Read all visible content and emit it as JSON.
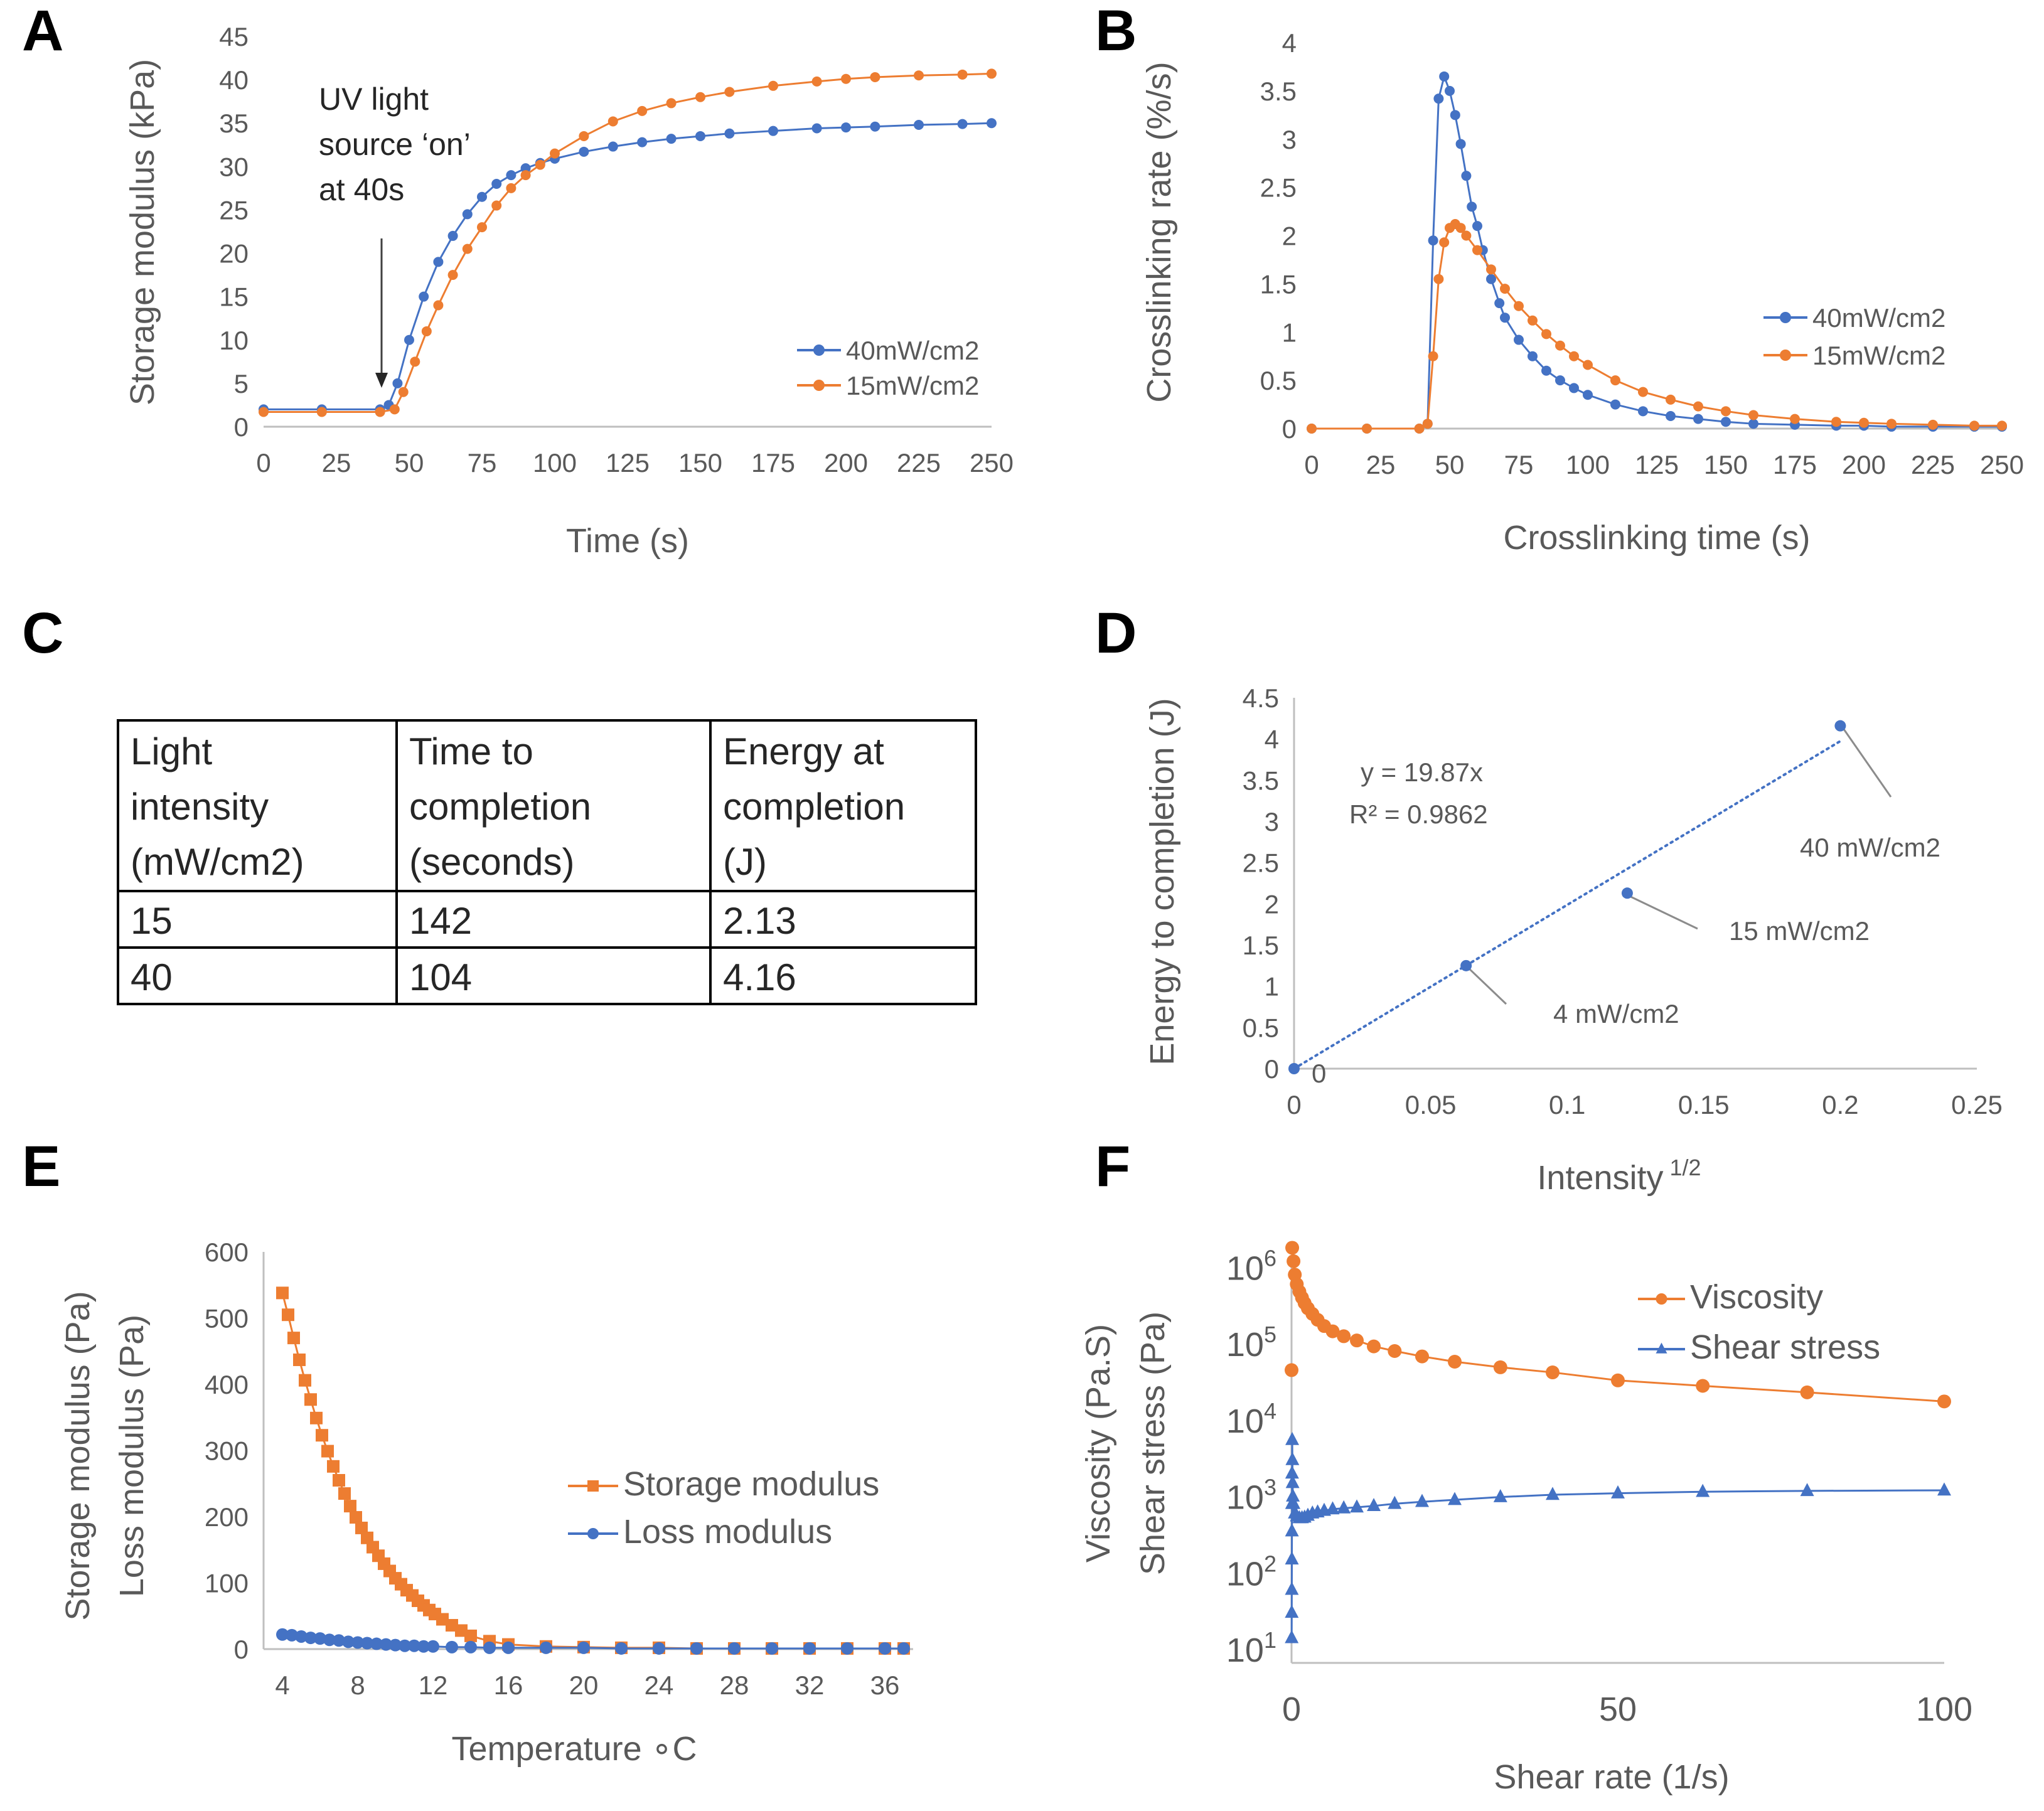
{
  "colors": {
    "blue": "#4472C4",
    "orange": "#ED7D31",
    "axis": "#bfbfbf",
    "text": "#595959"
  },
  "panels": {
    "A": "A",
    "B": "B",
    "C": "C",
    "D": "D",
    "E": "E",
    "F": "F"
  },
  "chart_data": [
    {
      "id": "A",
      "type": "line",
      "xlabel": "Time (s)",
      "ylabel": "Storage modulus (kPa)",
      "xlim": [
        0,
        250
      ],
      "ylim": [
        0,
        45
      ],
      "xticks": [
        "0",
        "25",
        "50",
        "75",
        "100",
        "125",
        "150",
        "175",
        "200",
        "225",
        "250"
      ],
      "yticks": [
        "0",
        "5",
        "10",
        "15",
        "20",
        "25",
        "30",
        "35",
        "40",
        "45"
      ],
      "annotation": [
        "UV light",
        "source ‘on’",
        "at 40s"
      ],
      "series": [
        {
          "name": "40mW/cm2",
          "color": "#4472C4",
          "x": [
            0,
            20,
            40,
            43,
            46,
            50,
            55,
            60,
            65,
            70,
            75,
            80,
            85,
            90,
            95,
            100,
            110,
            120,
            130,
            140,
            150,
            160,
            175,
            190,
            200,
            210,
            225,
            240,
            250
          ],
          "y": [
            2,
            2,
            2,
            2.5,
            5,
            10,
            15,
            19,
            22,
            24.5,
            26.5,
            28,
            29,
            29.8,
            30.4,
            30.9,
            31.7,
            32.3,
            32.8,
            33.2,
            33.5,
            33.8,
            34.1,
            34.4,
            34.5,
            34.6,
            34.8,
            34.9,
            35
          ]
        },
        {
          "name": "15mW/cm2",
          "color": "#ED7D31",
          "x": [
            0,
            20,
            40,
            45,
            48,
            52,
            56,
            60,
            65,
            70,
            75,
            80,
            85,
            90,
            95,
            100,
            110,
            120,
            130,
            140,
            150,
            160,
            175,
            190,
            200,
            210,
            225,
            240,
            250
          ],
          "y": [
            1.7,
            1.7,
            1.7,
            2,
            4,
            7.5,
            11,
            14,
            17.5,
            20.5,
            23,
            25.5,
            27.5,
            29,
            30.2,
            31.5,
            33.5,
            35.2,
            36.4,
            37.3,
            38,
            38.6,
            39.3,
            39.8,
            40.1,
            40.3,
            40.5,
            40.6,
            40.7
          ]
        }
      ]
    },
    {
      "id": "B",
      "type": "line",
      "xlabel": "Crosslinking time (s)",
      "ylabel": "Crosslinking rate (%/s)",
      "xlim": [
        0,
        250
      ],
      "ylim": [
        0,
        4
      ],
      "xticks": [
        "0",
        "25",
        "50",
        "75",
        "100",
        "125",
        "150",
        "175",
        "200",
        "225",
        "250"
      ],
      "yticks": [
        "0",
        "0.5",
        "1",
        "1.5",
        "2",
        "2.5",
        "3",
        "3.5",
        "4"
      ],
      "series": [
        {
          "name": "40mW/cm2",
          "color": "#4472C4",
          "x": [
            0,
            20,
            39,
            42,
            44,
            46,
            48,
            50,
            52,
            54,
            56,
            58,
            60,
            62,
            65,
            68,
            70,
            75,
            80,
            85,
            90,
            95,
            100,
            110,
            120,
            130,
            140,
            150,
            160,
            175,
            190,
            200,
            210,
            225,
            240,
            250
          ],
          "y": [
            0,
            0,
            0,
            0.05,
            1.95,
            3.42,
            3.65,
            3.5,
            3.25,
            2.95,
            2.62,
            2.3,
            2.1,
            1.85,
            1.55,
            1.3,
            1.15,
            0.92,
            0.75,
            0.6,
            0.5,
            0.42,
            0.35,
            0.25,
            0.18,
            0.13,
            0.1,
            0.07,
            0.05,
            0.04,
            0.03,
            0.03,
            0.02,
            0.02,
            0.02,
            0.02
          ]
        },
        {
          "name": "15mW/cm2",
          "color": "#ED7D31",
          "x": [
            0,
            20,
            39,
            42,
            44,
            46,
            48,
            50,
            52,
            54,
            56,
            60,
            65,
            70,
            75,
            80,
            85,
            90,
            95,
            100,
            110,
            120,
            130,
            140,
            150,
            160,
            175,
            190,
            200,
            210,
            225,
            240,
            250
          ],
          "y": [
            0,
            0,
            0,
            0.05,
            0.75,
            1.55,
            1.93,
            2.08,
            2.12,
            2.08,
            2.0,
            1.85,
            1.65,
            1.45,
            1.27,
            1.12,
            0.98,
            0.86,
            0.75,
            0.66,
            0.5,
            0.38,
            0.3,
            0.23,
            0.18,
            0.14,
            0.1,
            0.07,
            0.06,
            0.05,
            0.04,
            0.03,
            0.03
          ]
        }
      ]
    },
    {
      "id": "C",
      "type": "table",
      "columns": [
        [
          "Light",
          "intensity",
          "(mW/cm2)"
        ],
        [
          "Time to",
          "completion",
          "(seconds)"
        ],
        [
          "Energy at",
          "completion",
          "(J)"
        ]
      ],
      "rows": [
        [
          "15",
          "142",
          "2.13"
        ],
        [
          "40",
          "104",
          "4.16"
        ]
      ]
    },
    {
      "id": "D",
      "type": "scatter",
      "xlabel": "Intensity",
      "xlabel_sup": "1/2",
      "ylabel": "Energy to completion (J)",
      "xlim": [
        0,
        0.25
      ],
      "ylim": [
        0,
        4.5
      ],
      "xticks": [
        "0",
        "0.05",
        "0.1",
        "0.15",
        "0.2",
        "0.25"
      ],
      "yticks": [
        "0",
        "0.5",
        "1",
        "1.5",
        "2",
        "2.5",
        "3",
        "3.5",
        "4",
        "4.5"
      ],
      "trendline": {
        "slope": 19.87,
        "equation": "y = 19.87x",
        "r2": "R² = 0.9862"
      },
      "points": [
        {
          "x": 0,
          "y": 0,
          "label": "0"
        },
        {
          "x": 0.063,
          "y": 1.25,
          "label": "4 mW/cm2"
        },
        {
          "x": 0.122,
          "y": 2.13,
          "label": "15 mW/cm2"
        },
        {
          "x": 0.2,
          "y": 4.16,
          "label": "40 mW/cm2"
        }
      ]
    },
    {
      "id": "E",
      "type": "scatter",
      "xlabel": "Temperature ∘C",
      "ylabel": [
        "Storage modulus (Pa)",
        "Loss modulus (Pa)"
      ],
      "xlim": [
        3,
        37.5
      ],
      "ylim": [
        0,
        600
      ],
      "xticks": [
        "4",
        "8",
        "12",
        "16",
        "20",
        "24",
        "28",
        "32",
        "36"
      ],
      "yticks": [
        "0",
        "100",
        "200",
        "300",
        "400",
        "500",
        "600"
      ],
      "series": [
        {
          "name": "Storage modulus",
          "color": "#ED7D31",
          "marker": "square",
          "x": [
            4,
            4.3,
            4.6,
            4.9,
            5.2,
            5.5,
            5.8,
            6.1,
            6.4,
            6.7,
            7.0,
            7.3,
            7.6,
            7.9,
            8.2,
            8.5,
            8.8,
            9.1,
            9.4,
            9.7,
            10.0,
            10.3,
            10.6,
            10.9,
            11.2,
            11.5,
            11.8,
            12.1,
            12.5,
            13,
            13.5,
            14,
            15,
            16,
            18,
            20,
            22,
            24,
            26,
            28,
            30,
            32,
            34,
            36,
            37
          ],
          "y": [
            538,
            505,
            470,
            437,
            406,
            377,
            349,
            323,
            299,
            276,
            255,
            235,
            216,
            199,
            183,
            168,
            154,
            141,
            129,
            118,
            107,
            98,
            89,
            81,
            73,
            66,
            59,
            53,
            45,
            36,
            28,
            20,
            12,
            7,
            4,
            3,
            2,
            2,
            1,
            1,
            1,
            1,
            1,
            1,
            1
          ]
        },
        {
          "name": "Loss modulus",
          "color": "#4472C4",
          "marker": "circle",
          "x": [
            4,
            4.5,
            5,
            5.5,
            6,
            6.5,
            7,
            7.5,
            8,
            8.5,
            9,
            9.5,
            10,
            10.5,
            11,
            11.5,
            12,
            13,
            14,
            15,
            16,
            18,
            20,
            22,
            24,
            26,
            28,
            30,
            32,
            34,
            36,
            37
          ],
          "y": [
            22,
            21,
            19,
            17,
            16,
            14,
            13,
            11,
            10,
            9,
            8,
            7,
            6,
            5,
            5,
            4,
            4,
            3,
            3,
            2,
            2,
            2,
            2,
            1,
            1,
            1,
            1,
            1,
            1,
            1,
            1,
            1
          ]
        }
      ]
    },
    {
      "id": "F",
      "type": "line",
      "xlabel": "Shear rate (1/s)",
      "ylabel": [
        "Viscosity (Pa.S)",
        "Shear stress (Pa)"
      ],
      "yscale": "log",
      "xlim": [
        0,
        100
      ],
      "ylim_exp": [
        1,
        6.3
      ],
      "xticks": [
        "0",
        "50",
        "100"
      ],
      "yticks": [
        {
          "base": "10",
          "exp": "1"
        },
        {
          "base": "10",
          "exp": "2"
        },
        {
          "base": "10",
          "exp": "3"
        },
        {
          "base": "10",
          "exp": "4"
        },
        {
          "base": "10",
          "exp": "5"
        },
        {
          "base": "10",
          "exp": "6"
        }
      ],
      "series": [
        {
          "name": "Viscosity",
          "color": "#ED7D31",
          "marker": "circle",
          "x": [
            0.1,
            0.3,
            0.5,
            0.8,
            1.2,
            1.6,
            2,
            2.5,
            3.2,
            4,
            5,
            6.3,
            8,
            10,
            12.6,
            15.8,
            20,
            25,
            32,
            40,
            50,
            63,
            79,
            100
          ],
          "y": [
            1800000,
            1200000,
            800000,
            600000,
            480000,
            400000,
            340000,
            290000,
            245000,
            205000,
            170000,
            145000,
            125000,
            110000,
            92000,
            80000,
            68000,
            58000,
            49000,
            42000,
            33000,
            28000,
            23000,
            17500
          ]
        },
        {
          "name": "Shear stress",
          "color": "#4472C4",
          "marker": "triangle",
          "x": [
            0.02,
            0.03,
            0.04,
            0.05,
            0.06,
            0.07,
            0.08,
            0.1,
            0.13,
            0.16,
            0.2,
            0.3,
            0.5,
            0.8,
            1.2,
            1.6,
            2,
            2.5,
            3.2,
            4,
            5,
            6.3,
            8,
            10,
            12.6,
            15.8,
            20,
            25,
            32,
            40,
            50,
            63,
            79,
            100
          ],
          "y": [
            14,
            30,
            60,
            150,
            350,
            800,
            2000,
            5500,
            3000,
            1500,
            1000,
            800,
            600,
            550,
            520,
            520,
            530,
            560,
            600,
            620,
            650,
            680,
            700,
            720,
            750,
            800,
            850,
            900,
            980,
            1050,
            1100,
            1150,
            1180,
            1200
          ]
        }
      ]
    }
  ]
}
